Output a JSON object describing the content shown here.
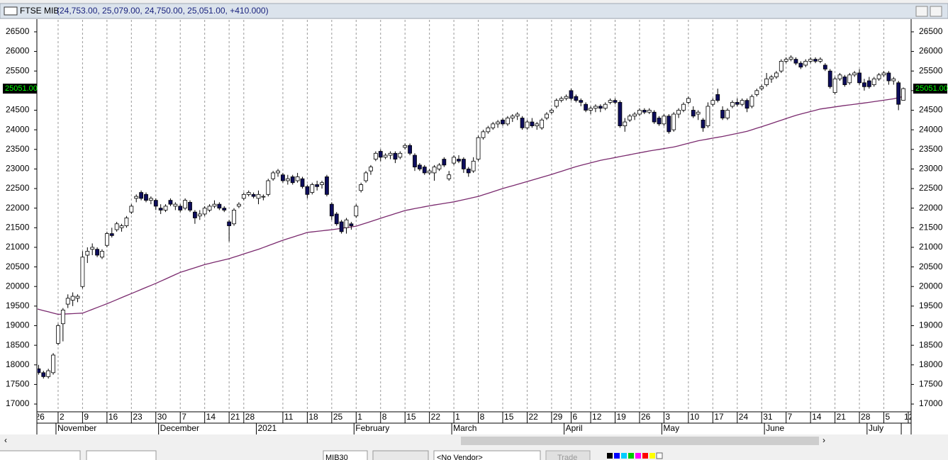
{
  "chart_data": {
    "type": "candlestick",
    "title": "FTSE MIB",
    "subtitle": "(24,753.00, 25,079.00, 24,750.00, 25,051.00, +410.000)",
    "last_price_label": "25051.00",
    "categories": [
      "26",
      null,
      null,
      null,
      null,
      "2",
      null,
      null,
      null,
      null,
      "9",
      null,
      null,
      null,
      null,
      "16",
      null,
      null,
      null,
      null,
      "23",
      null,
      null,
      null,
      null,
      "30",
      null,
      null,
      null,
      null,
      "7",
      null,
      null,
      null,
      null,
      "14",
      null,
      null,
      null,
      null,
      "21",
      null,
      null,
      "28",
      null,
      null,
      null,
      null,
      null,
      null,
      null,
      "11",
      null,
      null,
      null,
      null,
      "18",
      null,
      null,
      null,
      null,
      "25",
      null,
      null,
      null,
      null,
      "1",
      null,
      null,
      null,
      null,
      "8",
      null,
      null,
      null,
      null,
      "15",
      null,
      null,
      null,
      null,
      "22",
      null,
      null,
      null,
      null,
      "1",
      null,
      null,
      null,
      null,
      "8",
      null,
      null,
      null,
      null,
      "15",
      null,
      null,
      null,
      null,
      "22",
      null,
      null,
      null,
      null,
      "29",
      null,
      null,
      null,
      "6",
      null,
      null,
      null,
      "12",
      null,
      null,
      null,
      null,
      "19",
      null,
      null,
      null,
      null,
      "26",
      null,
      null,
      null,
      null,
      "3",
      null,
      null,
      null,
      null,
      "10",
      null,
      null,
      null,
      null,
      "17",
      null,
      null,
      null,
      null,
      "24",
      null,
      null,
      null,
      null,
      "31",
      null,
      null,
      null,
      null,
      "7",
      null,
      null,
      null,
      null,
      "14",
      null,
      null,
      null,
      null,
      "21",
      null,
      null,
      null,
      null,
      "28",
      null,
      null,
      null,
      null,
      "5",
      null,
      null,
      null,
      null
    ],
    "month_labels": [
      null,
      null,
      null,
      null,
      null,
      "November",
      null,
      null,
      null,
      null,
      null,
      null,
      null,
      null,
      null,
      null,
      null,
      null,
      null,
      null,
      null,
      null,
      null,
      null,
      null,
      null,
      "December",
      null,
      null,
      null,
      null,
      null,
      null,
      null,
      null,
      null,
      null,
      null,
      null,
      null,
      null,
      null,
      null,
      null,
      null,
      null,
      "2021",
      null,
      null,
      null,
      null,
      null,
      null,
      null,
      null,
      null,
      null,
      null,
      null,
      null,
      null,
      null,
      null,
      null,
      null,
      null,
      "February",
      null,
      null,
      null,
      null,
      null,
      null,
      null,
      null,
      null,
      null,
      null,
      null,
      null,
      null,
      null,
      null,
      null,
      null,
      null,
      "March",
      null,
      null,
      null,
      null,
      null,
      null,
      null,
      null,
      null,
      null,
      null,
      null,
      null,
      null,
      null,
      null,
      null,
      null,
      null,
      null,
      null,
      null,
      "April",
      null,
      null,
      null,
      null,
      null,
      null,
      null,
      null,
      null,
      null,
      null,
      null,
      null,
      null,
      null,
      null,
      null,
      null,
      null,
      "May",
      null,
      null,
      null,
      null,
      null,
      null,
      null,
      null,
      null,
      null,
      null,
      null,
      null,
      null,
      null,
      null,
      null,
      null,
      null,
      null,
      "June",
      null,
      null,
      null,
      null,
      null,
      null,
      null,
      null,
      null,
      null,
      null,
      null,
      null,
      null,
      null,
      null,
      null,
      null,
      null,
      null,
      "July",
      null,
      null,
      null,
      null,
      null,
      null
    ],
    "xaxis_end_label": "12",
    "open": [
      18300,
      17900,
      17800,
      17700,
      17800,
      18550,
      19050,
      19550,
      19650,
      19700,
      20000,
      20800,
      20950,
      20950,
      20750,
      21050,
      21350,
      21450,
      21500,
      21550,
      21900,
      22250,
      22400,
      22350,
      22200,
      22200,
      22000,
      21950,
      22200,
      22050,
      22050,
      22000,
      22150,
      21900,
      21800,
      21850,
      21950,
      22050,
      22100,
      22000,
      21650,
      21600,
      22050,
      22250,
      22350,
      22350,
      22250,
      22300,
      22350,
      22750,
      22900,
      22850,
      22700,
      22800,
      22700,
      22750,
      22550,
      22400,
      22600,
      22600,
      22800,
      22100,
      21850,
      21650,
      21500,
      21600,
      21800,
      22450,
      22700,
      22950,
      23250,
      23450,
      23300,
      23350,
      23400,
      23300,
      23550,
      23600,
      23350,
      23100,
      23050,
      22900,
      22900,
      23000,
      23250,
      22750,
      23150,
      23250,
      23250,
      23000,
      22950,
      23250,
      23800,
      23950,
      24050,
      24150,
      24250,
      24150,
      24300,
      24350,
      24300,
      24050,
      24200,
      24100,
      24050,
      24300,
      24450,
      24600,
      24750,
      24800,
      25000,
      24850,
      24750,
      24650,
      24500,
      24550,
      24600,
      24550,
      24700,
      24750,
      24700,
      24100,
      24250,
      24350,
      24400,
      24500,
      24450,
      24450,
      24300,
      24150,
      24350,
      24000,
      24400,
      24500,
      24700,
      24500,
      24400,
      24250,
      24100,
      24650,
      24900,
      24500,
      24300,
      24600,
      24700,
      24650,
      24750,
      24600,
      24900,
      25050,
      25150,
      25300,
      25350,
      25500,
      25750,
      25800,
      25800,
      25700,
      25650,
      25750,
      25800,
      25750,
      25650,
      25500,
      24950,
      25300,
      25350,
      25200,
      25400,
      25450,
      25200,
      25250,
      25150,
      25300,
      25400,
      25450,
      25250,
      25200,
      24753
    ],
    "high": [
      18350,
      18000,
      17850,
      17900,
      18300,
      19050,
      19450,
      19800,
      19850,
      19800,
      20900,
      21000,
      21100,
      21000,
      20950,
      21400,
      21500,
      21650,
      21600,
      21800,
      22100,
      22350,
      22450,
      22400,
      22300,
      22250,
      22100,
      22100,
      22250,
      22150,
      22100,
      22250,
      22200,
      21950,
      21950,
      22050,
      22100,
      22200,
      22150,
      22050,
      21700,
      22000,
      22150,
      22400,
      22450,
      22400,
      22450,
      22350,
      22750,
      22950,
      23000,
      22900,
      22850,
      22850,
      22900,
      22800,
      22600,
      22650,
      22700,
      22700,
      22850,
      22150,
      21900,
      21700,
      21750,
      21650,
      22100,
      22650,
      22950,
      23100,
      23450,
      23500,
      23400,
      23450,
      23450,
      23450,
      23650,
      23650,
      23400,
      23150,
      23100,
      23000,
      23100,
      23150,
      23300,
      22950,
      23350,
      23350,
      23300,
      23050,
      23300,
      23850,
      24000,
      24100,
      24200,
      24250,
      24300,
      24350,
      24400,
      24450,
      24350,
      24250,
      24300,
      24200,
      24300,
      24450,
      24550,
      24800,
      24850,
      24900,
      25050,
      24900,
      24800,
      24700,
      24600,
      24650,
      24650,
      24700,
      24800,
      24800,
      24750,
      24300,
      24400,
      24450,
      24550,
      24550,
      24550,
      24500,
      24350,
      24400,
      24400,
      24450,
      24550,
      24700,
      24850,
      24600,
      24500,
      24300,
      24700,
      24800,
      25050,
      24600,
      24550,
      24750,
      24800,
      24800,
      24800,
      24900,
      25050,
      25150,
      25450,
      25400,
      25500,
      25800,
      25850,
      25900,
      25850,
      25750,
      25800,
      25850,
      25850,
      25850,
      25700,
      25550,
      25350,
      25450,
      25400,
      25450,
      25500,
      25550,
      25300,
      25350,
      25350,
      25450,
      25500,
      25500,
      25350,
      25250,
      25079
    ],
    "low": [
      17850,
      17750,
      17650,
      17650,
      17750,
      18500,
      18600,
      19450,
      19500,
      19600,
      19950,
      20600,
      20800,
      20750,
      20700,
      21000,
      21250,
      21400,
      21400,
      21500,
      21850,
      22150,
      22200,
      22150,
      22100,
      21950,
      21850,
      21900,
      22050,
      21950,
      21900,
      21950,
      21900,
      21600,
      21700,
      21800,
      21900,
      22000,
      21950,
      21900,
      21150,
      21550,
      22000,
      22200,
      22300,
      22250,
      22100,
      22200,
      22300,
      22700,
      22800,
      22650,
      22600,
      22600,
      22650,
      22500,
      22250,
      22350,
      22450,
      22500,
      22300,
      21700,
      21550,
      21350,
      21350,
      21450,
      21750,
      22400,
      22650,
      22850,
      23200,
      23200,
      23250,
      23250,
      23150,
      23250,
      23500,
      23350,
      22950,
      22950,
      22850,
      22850,
      22700,
      22950,
      23050,
      22700,
      23100,
      23150,
      22900,
      22800,
      22900,
      23200,
      23750,
      23900,
      24000,
      24050,
      24100,
      24100,
      24200,
      24250,
      24000,
      24000,
      24050,
      24000,
      24000,
      24250,
      24400,
      24550,
      24700,
      24750,
      24750,
      24700,
      24600,
      24450,
      24400,
      24450,
      24450,
      24500,
      24650,
      24650,
      24050,
      23950,
      24200,
      24250,
      24350,
      24400,
      24400,
      24150,
      24100,
      24100,
      23900,
      23950,
      24300,
      24450,
      24650,
      24300,
      24250,
      23950,
      24050,
      24600,
      24700,
      24250,
      24250,
      24550,
      24600,
      24600,
      24450,
      24550,
      24850,
      25000,
      25100,
      25200,
      25300,
      25450,
      25700,
      25750,
      25650,
      25550,
      25600,
      25700,
      25700,
      25700,
      25500,
      25050,
      24900,
      25250,
      25100,
      25150,
      25350,
      25150,
      25000,
      25050,
      25100,
      25250,
      25350,
      25150,
      25150,
      24500,
      24750
    ],
    "close": [
      17900,
      17800,
      17700,
      17850,
      18250,
      19000,
      19400,
      19700,
      19750,
      19750,
      20750,
      20900,
      21000,
      20800,
      20900,
      21350,
      21300,
      21600,
      21550,
      21750,
      22050,
      22300,
      22250,
      22200,
      22250,
      22050,
      21950,
      22050,
      22100,
      22100,
      21950,
      22200,
      21950,
      21750,
      21850,
      22000,
      22050,
      22100,
      22000,
      21950,
      21550,
      21950,
      22100,
      22350,
      22400,
      22300,
      22350,
      22300,
      22700,
      22900,
      22950,
      22700,
      22750,
      22650,
      22800,
      22550,
      22350,
      22600,
      22550,
      22650,
      22350,
      21800,
      21600,
      21400,
      21700,
      21550,
      22050,
      22600,
      22900,
      23050,
      23400,
      23300,
      23350,
      23400,
      23250,
      23400,
      23600,
      23400,
      23050,
      23000,
      22900,
      22950,
      23050,
      23100,
      23100,
      22850,
      23300,
      23200,
      23000,
      22900,
      23200,
      23800,
      23950,
      24050,
      24150,
      24200,
      24150,
      24300,
      24350,
      24400,
      24050,
      24200,
      24100,
      24150,
      24250,
      24400,
      24500,
      24750,
      24800,
      24850,
      24800,
      24750,
      24700,
      24500,
      24550,
      24600,
      24550,
      24650,
      24750,
      24700,
      24100,
      24200,
      24350,
      24400,
      24500,
      24450,
      24500,
      24200,
      24150,
      24350,
      23950,
      24400,
      24500,
      24650,
      24800,
      24350,
      24450,
      24050,
      24600,
      24750,
      24750,
      24300,
      24500,
      24700,
      24650,
      24750,
      24550,
      24850,
      25000,
      25100,
      25300,
      25350,
      25450,
      25750,
      25800,
      25850,
      25700,
      25600,
      25750,
      25800,
      25750,
      25800,
      25550,
      25100,
      25300,
      25400,
      25150,
      25400,
      25450,
      25200,
      25100,
      25100,
      25300,
      25400,
      25450,
      25250,
      25300,
      24650,
      25051
    ],
    "up_color": "#ffffff",
    "down_color": "#0d0d5c",
    "wick_color": "#000000",
    "moving_average": {
      "color": "#7a2a6e",
      "values": [
        19450,
        19418,
        19386,
        19354,
        19322,
        19290,
        19296,
        19302,
        19308,
        19314,
        19320,
        19368,
        19416,
        19464,
        19512,
        19560,
        19612,
        19664,
        19716,
        19768,
        19820,
        19872,
        19924,
        19976,
        20028,
        20080,
        20136,
        20192,
        20248,
        20304,
        20360,
        20400,
        20440,
        20480,
        20520,
        20560,
        20590,
        20620,
        20650,
        20680,
        20710,
        20750,
        20790,
        20830,
        20870,
        20910,
        20950,
        20996,
        21042,
        21088,
        21134,
        21180,
        21220,
        21260,
        21300,
        21340,
        21380,
        21394,
        21408,
        21422,
        21436,
        21450,
        21468,
        21486,
        21504,
        21522,
        21540,
        21580,
        21620,
        21660,
        21700,
        21740,
        21780,
        21820,
        21860,
        21900,
        21940,
        21964,
        21988,
        22012,
        22036,
        22060,
        22080,
        22100,
        22120,
        22140,
        22160,
        22188,
        22216,
        22244,
        22272,
        22300,
        22340,
        22380,
        22420,
        22460,
        22500,
        22536,
        22572,
        22608,
        22644,
        22680,
        22716,
        22752,
        22788,
        22824,
        22860,
        22900,
        22940,
        22980,
        23020,
        23060,
        23092,
        23124,
        23156,
        23188,
        23220,
        23244,
        23268,
        23292,
        23316,
        23340,
        23364,
        23388,
        23412,
        23436,
        23460,
        23480,
        23500,
        23520,
        23540,
        23560,
        23592,
        23624,
        23656,
        23688,
        23720,
        23742,
        23764,
        23786,
        23808,
        23830,
        23856,
        23882,
        23908,
        23934,
        23960,
        24000,
        24040,
        24080,
        24120,
        24160,
        24202,
        24244,
        24286,
        24328,
        24370,
        24402,
        24434,
        24466,
        24498,
        24530,
        24548,
        24566,
        24584,
        24602,
        24620,
        24636,
        24652,
        24668,
        24684,
        24700,
        24718,
        24736,
        24754,
        24772,
        24790,
        24820,
        24850
      ]
    },
    "ylim": [
      16820,
      26770
    ],
    "yticks": [
      17000,
      17500,
      18000,
      18500,
      19000,
      19500,
      20000,
      20500,
      21000,
      21500,
      22000,
      22500,
      23000,
      23500,
      24000,
      24500,
      25000,
      25500,
      26000,
      26500
    ],
    "grid": true
  },
  "toolbar": {
    "symbol": "MIB30",
    "vendor": "<No Vendor>",
    "trade": "Trade"
  }
}
